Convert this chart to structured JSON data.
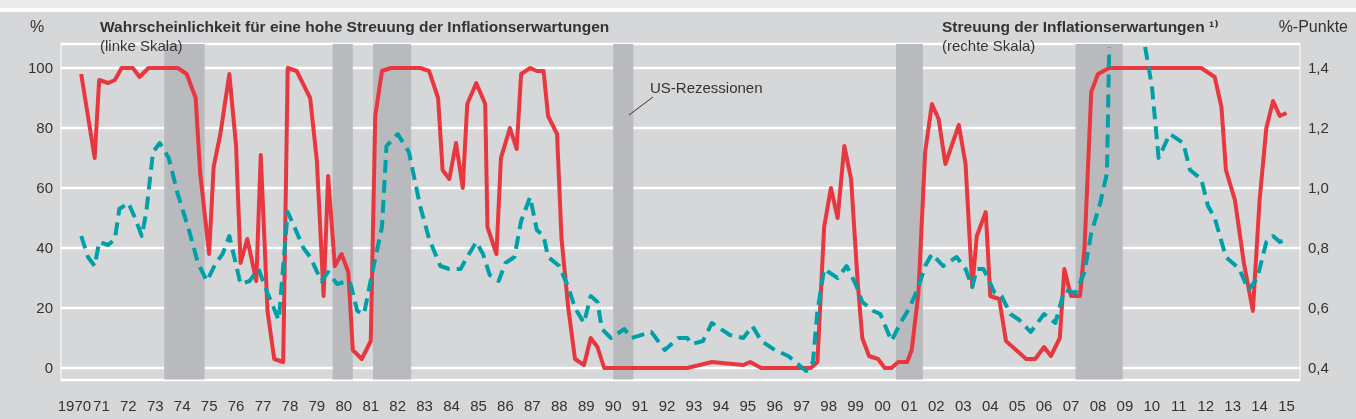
{
  "chart_data": {
    "type": "line",
    "ylabel": "%",
    "y2label": "%-Punkte",
    "xlim": [
      "1970-01",
      "2016-01"
    ],
    "xticks": [
      {
        "value": "1970-07",
        "label": "1970"
      },
      {
        "value": "1971-07",
        "label": "71"
      },
      {
        "value": "1972-07",
        "label": "72"
      },
      {
        "value": "1973-07",
        "label": "73"
      },
      {
        "value": "1974-07",
        "label": "74"
      },
      {
        "value": "1975-07",
        "label": "75"
      },
      {
        "value": "1976-07",
        "label": "76"
      },
      {
        "value": "1977-07",
        "label": "77"
      },
      {
        "value": "1978-07",
        "label": "78"
      },
      {
        "value": "1979-07",
        "label": "79"
      },
      {
        "value": "1980-07",
        "label": "80"
      },
      {
        "value": "1981-07",
        "label": "81"
      },
      {
        "value": "1982-07",
        "label": "82"
      },
      {
        "value": "1983-07",
        "label": "83"
      },
      {
        "value": "1984-07",
        "label": "84"
      },
      {
        "value": "1985-07",
        "label": "85"
      },
      {
        "value": "1986-07",
        "label": "86"
      },
      {
        "value": "1987-07",
        "label": "87"
      },
      {
        "value": "1988-07",
        "label": "88"
      },
      {
        "value": "1989-07",
        "label": "89"
      },
      {
        "value": "1990-07",
        "label": "90"
      },
      {
        "value": "1991-07",
        "label": "91"
      },
      {
        "value": "1992-07",
        "label": "92"
      },
      {
        "value": "1993-07",
        "label": "93"
      },
      {
        "value": "1994-07",
        "label": "94"
      },
      {
        "value": "1995-07",
        "label": "95"
      },
      {
        "value": "1996-07",
        "label": "96"
      },
      {
        "value": "1997-07",
        "label": "97"
      },
      {
        "value": "1998-07",
        "label": "98"
      },
      {
        "value": "1999-07",
        "label": "99"
      },
      {
        "value": "2000-07",
        "label": "00"
      },
      {
        "value": "2001-07",
        "label": "01"
      },
      {
        "value": "2002-07",
        "label": "02"
      },
      {
        "value": "2003-07",
        "label": "03"
      },
      {
        "value": "2004-07",
        "label": "04"
      },
      {
        "value": "2005-07",
        "label": "05"
      },
      {
        "value": "2006-07",
        "label": "06"
      },
      {
        "value": "2007-07",
        "label": "07"
      },
      {
        "value": "2008-07",
        "label": "08"
      },
      {
        "value": "2009-07",
        "label": "09"
      },
      {
        "value": "2010-07",
        "label": "10"
      },
      {
        "value": "2011-07",
        "label": "11"
      },
      {
        "value": "2012-07",
        "label": "12"
      },
      {
        "value": "2013-07",
        "label": "13"
      },
      {
        "value": "2014-07",
        "label": "14"
      },
      {
        "value": "2015-07",
        "label": "15"
      }
    ],
    "ylim": [
      -4,
      108
    ],
    "yticks": [
      0,
      20,
      40,
      60,
      80,
      100
    ],
    "y2lim": [
      0.36,
      1.48
    ],
    "y2ticks": [
      {
        "value": 0.4,
        "label": "0,4"
      },
      {
        "value": 0.6,
        "label": "0,6"
      },
      {
        "value": 0.8,
        "label": "0,8"
      },
      {
        "value": 1.0,
        "label": "1,0"
      },
      {
        "value": 1.2,
        "label": "1,2"
      },
      {
        "value": 1.4,
        "label": "1,4"
      }
    ],
    "grid": "y",
    "marker": "none",
    "bands": [
      {
        "axis": "x",
        "from": "1973-11",
        "to": "1975-05",
        "color": "#b9babe"
      },
      {
        "axis": "x",
        "from": "1980-02",
        "to": "1980-11",
        "color": "#b9babe"
      },
      {
        "axis": "x",
        "from": "1981-08",
        "to": "1983-01",
        "color": "#b9babe"
      },
      {
        "axis": "x",
        "from": "1990-07",
        "to": "1991-04",
        "color": "#b9babe"
      },
      {
        "axis": "x",
        "from": "2001-01",
        "to": "2002-01",
        "color": "#b9babe"
      },
      {
        "axis": "x",
        "from": "2007-09",
        "to": "2009-06",
        "color": "#b9babe"
      }
    ],
    "annotations": [
      "(linke Skala)",
      "(rechte Skala)",
      "US-Rezessionen"
    ],
    "series": [
      {
        "name": "Wahrscheinlichkeit für eine hohe Streuung der Inflationserwartungen",
        "color": "#e8373f",
        "line_style": "solid",
        "x": [
          "1970-10",
          "1971-04",
          "1971-06",
          "1971-10",
          "1972-01",
          "1972-04",
          "1972-09",
          "1972-12",
          "1973-04",
          "1974-05",
          "1974-09",
          "1975-01",
          "1975-03",
          "1975-07",
          "1975-09",
          "1975-12",
          "1976-04",
          "1976-07",
          "1976-09",
          "1976-12",
          "1977-04",
          "1977-06",
          "1977-09",
          "1977-12",
          "1978-04",
          "1978-06",
          "1978-10",
          "1979-04",
          "1979-07",
          "1979-10",
          "1979-12",
          "1980-03",
          "1980-06",
          "1980-09",
          "1980-11",
          "1981-03",
          "1981-07",
          "1981-09",
          "1981-12",
          "1982-04",
          "1983-05",
          "1983-09",
          "1984-01",
          "1984-03",
          "1984-06",
          "1984-09",
          "1984-12",
          "1985-02",
          "1985-06",
          "1985-10",
          "1985-11",
          "1986-03",
          "1986-05",
          "1986-09",
          "1986-12",
          "1987-02",
          "1987-06",
          "1987-09",
          "1987-12",
          "1988-02",
          "1988-06",
          "1988-08",
          "1988-11",
          "1989-02",
          "1989-06",
          "1989-09",
          "1989-12",
          "1990-03",
          "1993-04",
          "1994-03",
          "1995-05",
          "1995-08",
          "1996-01",
          "1997-11",
          "1998-02",
          "1998-05",
          "1998-08",
          "1998-11",
          "1999-02",
          "1999-05",
          "1999-08",
          "1999-10",
          "2000-01",
          "2000-05",
          "2000-08",
          "2000-11",
          "2001-02",
          "2001-06",
          "2001-08",
          "2001-11",
          "2002-02",
          "2002-05",
          "2002-08",
          "2002-11",
          "2003-05",
          "2003-08",
          "2003-11",
          "2004-01",
          "2004-05",
          "2004-07",
          "2004-11",
          "2005-02",
          "2005-05",
          "2005-11",
          "2006-03",
          "2006-07",
          "2006-10",
          "2007-02",
          "2007-04",
          "2007-07",
          "2007-11",
          "2008-01",
          "2008-04",
          "2008-07",
          "2008-12",
          "2012-05",
          "2012-11",
          "2013-02",
          "2013-04",
          "2013-08",
          "2013-12",
          "2014-04",
          "2014-07",
          "2014-10",
          "2015-01",
          "2015-04",
          "2015-07"
        ],
        "values": [
          98,
          70,
          96,
          95,
          96,
          100,
          100,
          97,
          100,
          100,
          98,
          90,
          65,
          38,
          67,
          78,
          98,
          74,
          35,
          43,
          29,
          71,
          19,
          3,
          2,
          100,
          99,
          90,
          69,
          24,
          64,
          34,
          38,
          32,
          6,
          3,
          9,
          84,
          99,
          100,
          100,
          99,
          90,
          66,
          63,
          75,
          60,
          88,
          95,
          88,
          47,
          38,
          70,
          80,
          73,
          98,
          100,
          99,
          99,
          84,
          78,
          43,
          20,
          3,
          1,
          10,
          7,
          0,
          0,
          2,
          1,
          2,
          0,
          0,
          2,
          47,
          60,
          50,
          74,
          63,
          28,
          10,
          4,
          3,
          0,
          0,
          2,
          2,
          6,
          25,
          72,
          88,
          83,
          68,
          81,
          68,
          27,
          44,
          52,
          24,
          23,
          9,
          7,
          3,
          3,
          7,
          4,
          10,
          33,
          24,
          24,
          40,
          92,
          98,
          100,
          100,
          97,
          87,
          66,
          56,
          35,
          19,
          56,
          80,
          89,
          84,
          85
        ]
      },
      {
        "name": "Streuung der Inflationserwartungen ¹⁾",
        "color": "#00a0a8",
        "line_style": "dashed",
        "axis": "y2",
        "x": [
          "1970-10",
          "1971-01",
          "1971-04",
          "1971-06",
          "1971-10",
          "1972-01",
          "1972-03",
          "1972-07",
          "1972-10",
          "1973-01",
          "1973-03",
          "1973-06",
          "1973-09",
          "1974-01",
          "1974-05",
          "1974-10",
          "1975-02",
          "1975-06",
          "1975-10",
          "1976-01",
          "1976-04",
          "1976-09",
          "1977-01",
          "1977-05",
          "1977-09",
          "1978-02",
          "1978-06",
          "1978-09",
          "1979-01",
          "1979-04",
          "1979-09",
          "1979-12",
          "1980-04",
          "1980-09",
          "1980-10",
          "1981-01",
          "1981-04",
          "1981-08",
          "1981-12",
          "1982-02",
          "1982-07",
          "1982-12",
          "1983-05",
          "1983-09",
          "1984-02",
          "1984-06",
          "1984-11",
          "1985-02",
          "1985-06",
          "1985-09",
          "1985-12",
          "1986-04",
          "1986-07",
          "1986-11",
          "1987-02",
          "1987-06",
          "1987-09",
          "1987-12",
          "1988-02",
          "1988-07",
          "1988-11",
          "1989-02",
          "1989-06",
          "1989-09",
          "1989-12",
          "1990-02",
          "1990-06",
          "1990-12",
          "1991-03",
          "1991-12",
          "1992-06",
          "1992-12",
          "1993-04",
          "1993-06",
          "1993-11",
          "1994-03",
          "1994-11",
          "1995-05",
          "1995-09",
          "1996-01",
          "1996-07",
          "1997-01",
          "1997-09",
          "1997-12",
          "1998-02",
          "1998-05",
          "1998-11",
          "1999-03",
          "1999-07",
          "1999-10",
          "2000-03",
          "2000-06",
          "2000-11",
          "2001-03",
          "2001-07",
          "2001-11",
          "2002-02",
          "2002-05",
          "2002-10",
          "2003-04",
          "2003-08",
          "2003-11",
          "2004-01",
          "2004-04",
          "2004-09",
          "2004-12",
          "2005-04",
          "2005-08",
          "2006-01",
          "2006-07",
          "2006-12",
          "2007-04",
          "2007-09",
          "2008-01",
          "2008-04",
          "2008-08",
          "2008-11",
          "2008-12",
          "2009-08",
          "2010-04",
          "2010-07",
          "2010-10",
          "2011-03",
          "2011-09",
          "2011-12",
          "2012-05",
          "2012-08",
          "2012-11",
          "2013-04",
          "2013-10",
          "2014-02",
          "2014-06",
          "2014-10",
          "2015-01",
          "2015-04",
          "2015-07"
        ],
        "values": [
          0.84,
          0.77,
          0.74,
          0.82,
          0.81,
          0.83,
          0.93,
          0.95,
          0.9,
          0.84,
          0.92,
          1.12,
          1.15,
          1.1,
          0.98,
          0.86,
          0.75,
          0.69,
          0.75,
          0.78,
          0.84,
          0.68,
          0.69,
          0.73,
          0.65,
          0.56,
          0.92,
          0.87,
          0.8,
          0.77,
          0.69,
          0.72,
          0.68,
          0.69,
          0.68,
          0.59,
          0.58,
          0.73,
          0.87,
          1.14,
          1.18,
          1.12,
          0.94,
          0.83,
          0.74,
          0.73,
          0.73,
          0.77,
          0.82,
          0.78,
          0.71,
          0.69,
          0.75,
          0.77,
          0.89,
          0.97,
          0.86,
          0.84,
          0.77,
          0.74,
          0.67,
          0.6,
          0.55,
          0.64,
          0.62,
          0.53,
          0.5,
          0.53,
          0.5,
          0.52,
          0.46,
          0.5,
          0.5,
          0.48,
          0.49,
          0.55,
          0.51,
          0.5,
          0.54,
          0.49,
          0.46,
          0.44,
          0.39,
          0.42,
          0.59,
          0.73,
          0.7,
          0.74,
          0.68,
          0.62,
          0.59,
          0.58,
          0.49,
          0.55,
          0.6,
          0.67,
          0.74,
          0.78,
          0.74,
          0.77,
          0.73,
          0.67,
          0.73,
          0.73,
          0.65,
          0.64,
          0.58,
          0.56,
          0.52,
          0.58,
          0.55,
          0.66,
          0.65,
          0.72,
          0.85,
          0.95,
          1.05,
          1.47,
          null,
          1.47,
          1.34,
          1.1,
          1.18,
          1.15,
          1.06,
          1.03,
          0.94,
          0.9,
          0.77,
          0.73,
          0.66,
          0.7,
          0.82,
          0.84,
          0.82,
          0.83
        ]
      }
    ]
  }
}
